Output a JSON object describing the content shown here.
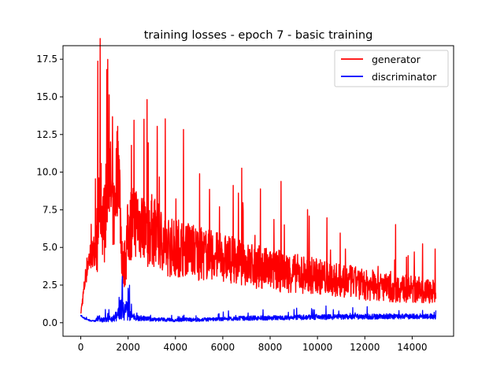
{
  "chart_data": {
    "type": "line",
    "title": "training losses - epoch 7 - basic training",
    "xlabel": "",
    "ylabel": "",
    "xlim": [
      -750,
      15750
    ],
    "ylim": [
      -0.9,
      18.4
    ],
    "xticks": [
      0,
      2000,
      4000,
      6000,
      8000,
      10000,
      12000,
      14000
    ],
    "xtick_labels": [
      "0",
      "2000",
      "4000",
      "6000",
      "8000",
      "10000",
      "12000",
      "14000"
    ],
    "yticks": [
      0.0,
      2.5,
      5.0,
      7.5,
      10.0,
      12.5,
      15.0,
      17.5
    ],
    "ytick_labels": [
      "0.0",
      "2.5",
      "5.0",
      "7.5",
      "10.0",
      "12.5",
      "15.0",
      "17.5"
    ],
    "grid": false,
    "legend_position": "top-right",
    "series": [
      {
        "name": "generator",
        "color": "#ff0000",
        "x": [
          0,
          100,
          200,
          300,
          400,
          500,
          600,
          700,
          800,
          900,
          1000,
          1100,
          1200,
          1300,
          1400,
          1500,
          1600,
          1700,
          1800,
          1900,
          2000,
          2200,
          2400,
          2600,
          2800,
          3000,
          3200,
          3400,
          3600,
          3800,
          4000,
          4500,
          5000,
          5500,
          6000,
          6500,
          7000,
          7500,
          8000,
          8500,
          9000,
          9500,
          10000,
          10500,
          11000,
          11500,
          12000,
          12500,
          13000,
          13500,
          14000,
          14500,
          15000
        ],
        "values": [
          0.6,
          1.8,
          3.0,
          4.0,
          4.4,
          4.7,
          5.0,
          5.8,
          8.5,
          7.5,
          6.5,
          9.0,
          11.0,
          8.0,
          7.0,
          9.5,
          11.0,
          6.0,
          3.5,
          4.5,
          6.0,
          7.0,
          6.8,
          6.5,
          6.0,
          6.2,
          5.8,
          5.5,
          5.2,
          5.0,
          5.0,
          5.0,
          4.6,
          4.5,
          4.3,
          4.2,
          3.9,
          3.7,
          3.5,
          3.4,
          3.3,
          3.2,
          3.1,
          2.9,
          2.8,
          2.7,
          2.5,
          2.4,
          2.3,
          2.3,
          2.2,
          2.2,
          2.0
        ],
        "band": [
          0.1,
          0.4,
          0.7,
          0.9,
          1.0,
          1.0,
          1.2,
          2.6,
          3.0,
          3.0,
          2.6,
          3.0,
          3.4,
          2.8,
          2.5,
          3.2,
          3.4,
          2.5,
          1.5,
          2.0,
          2.4,
          2.6,
          2.6,
          2.5,
          2.4,
          2.4,
          2.3,
          2.2,
          2.1,
          2.0,
          2.0,
          1.9,
          1.8,
          1.7,
          1.6,
          1.6,
          1.5,
          1.5,
          1.4,
          1.4,
          1.3,
          1.3,
          1.2,
          1.2,
          1.1,
          1.1,
          1.0,
          1.0,
          0.95,
          0.95,
          0.9,
          0.9,
          0.8
        ]
      },
      {
        "name": "discriminator",
        "color": "#0000ff",
        "x": [
          0,
          100,
          200,
          300,
          400,
          500,
          600,
          700,
          800,
          900,
          1000,
          1200,
          1400,
          1600,
          1700,
          1800,
          1900,
          2000,
          2100,
          2200,
          2400,
          2600,
          2800,
          3000,
          3500,
          4000,
          4500,
          5000,
          5500,
          6000,
          7000,
          8000,
          9000,
          10000,
          11000,
          12000,
          13000,
          14000,
          15000
        ],
        "values": [
          0.5,
          0.35,
          0.25,
          0.2,
          0.15,
          0.12,
          0.12,
          0.25,
          0.3,
          0.2,
          0.2,
          0.25,
          0.3,
          0.6,
          1.2,
          0.5,
          0.8,
          1.2,
          0.5,
          0.35,
          0.3,
          0.3,
          0.25,
          0.25,
          0.2,
          0.18,
          0.2,
          0.2,
          0.22,
          0.25,
          0.3,
          0.32,
          0.35,
          0.38,
          0.38,
          0.4,
          0.42,
          0.42,
          0.4
        ],
        "band": [
          0.05,
          0.05,
          0.05,
          0.05,
          0.05,
          0.05,
          0.08,
          0.2,
          0.2,
          0.15,
          0.15,
          0.18,
          0.25,
          0.5,
          1.0,
          0.4,
          0.6,
          1.1,
          0.35,
          0.2,
          0.18,
          0.18,
          0.15,
          0.15,
          0.12,
          0.12,
          0.12,
          0.12,
          0.12,
          0.12,
          0.15,
          0.15,
          0.16,
          0.18,
          0.18,
          0.18,
          0.18,
          0.18,
          0.16
        ]
      }
    ]
  }
}
